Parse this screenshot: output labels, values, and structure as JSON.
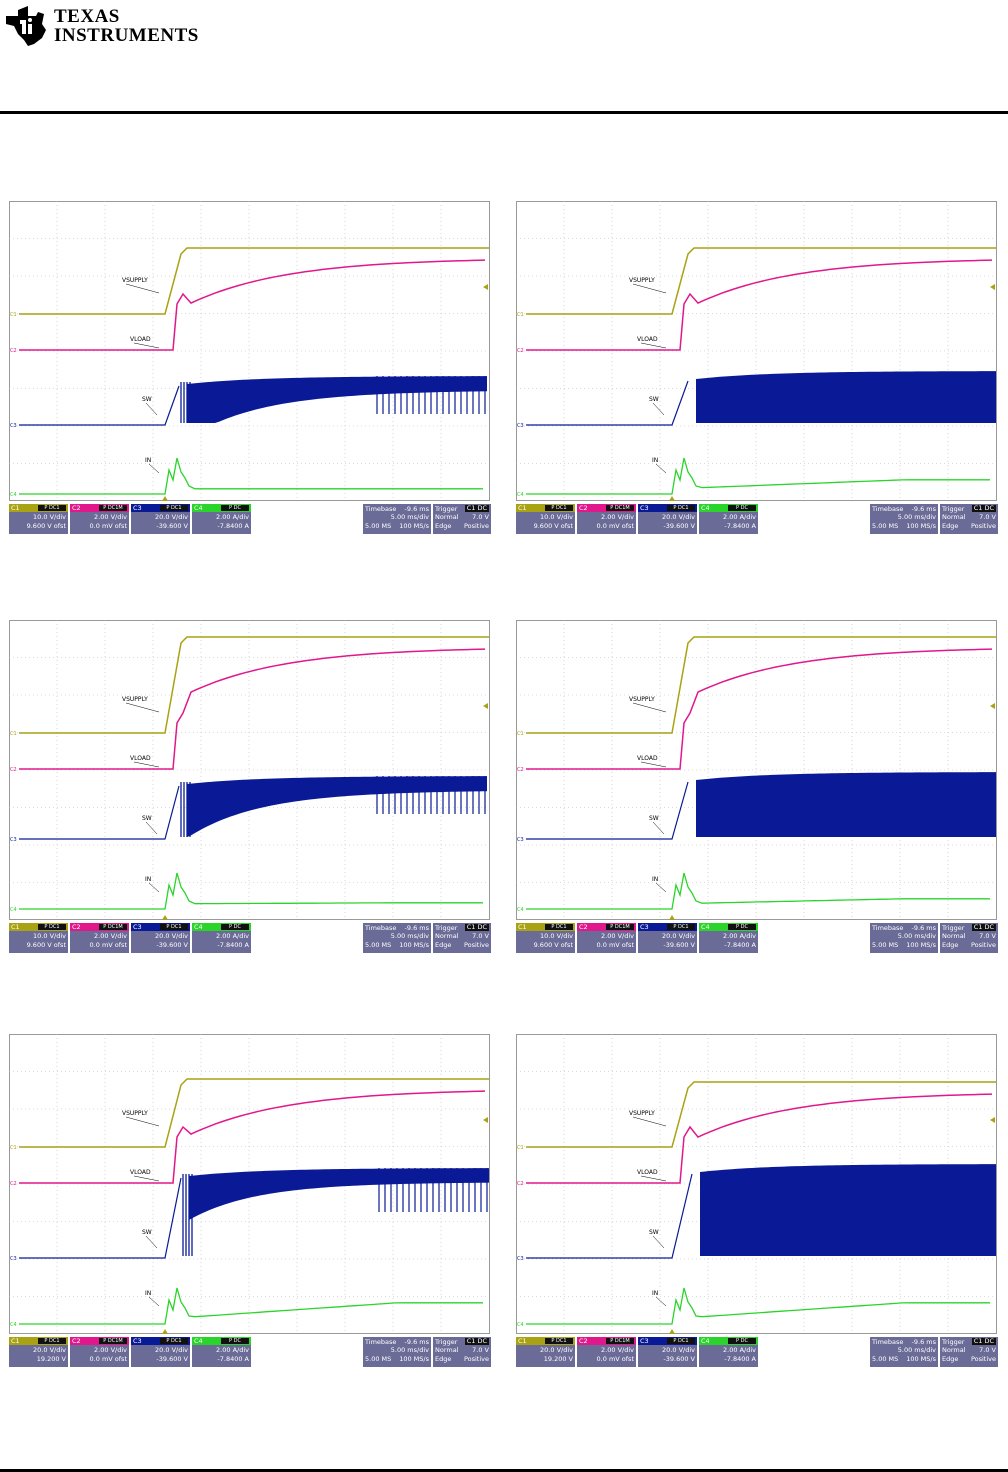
{
  "header": {
    "logo_line1": "TEXAS",
    "logo_line2": "INSTRUMENTS",
    "logo_icon": "ti-state-logo-icon"
  },
  "colors": {
    "c1": "#a9a213",
    "c2": "#e0188c",
    "c3": "#0a1a96",
    "c4": "#2bd42b",
    "grid": "#b9b9b9",
    "info_bg": "#6b6b97"
  },
  "chart_data": [
    {
      "type": "line",
      "labels": {
        "vsupply": "VSUPPLY",
        "vload": "VLOAD",
        "sw": "SW",
        "in": "IN"
      },
      "markers": [
        "C1",
        "C2",
        "C3",
        "C4"
      ],
      "channels": [
        {
          "name": "C1",
          "tag": "P DC1",
          "scale": "10.0 V/div",
          "offset": "9.600 V ofst"
        },
        {
          "name": "C2",
          "tag": "P DC1M",
          "scale": "2.00 V/div",
          "offset": "0.0 mV ofst"
        },
        {
          "name": "C3",
          "tag": "P DC1",
          "scale": "20.0 V/div",
          "offset": "-39.600 V"
        },
        {
          "name": "C4",
          "tag": "P DC",
          "scale": "2.00 A/div",
          "offset": "-7.8400 A"
        }
      ],
      "timebase": {
        "label": "Timebase",
        "value": "-9.6 ms",
        "scale": "5.00 ms/div",
        "samples": "5.00 MS",
        "rate": "100 MS/s"
      },
      "trigger": {
        "label": "Trigger",
        "src": "C1 DC",
        "mode": "Normal",
        "level": "7.0 V",
        "type": "Edge",
        "slope": "Positive"
      }
    },
    {
      "type": "line",
      "labels": {
        "vsupply": "VSUPPLY",
        "vload": "VLOAD",
        "sw": "SW",
        "in": "IN"
      },
      "markers": [
        "C1",
        "C2",
        "C3",
        "C4"
      ],
      "channels": [
        {
          "name": "C1",
          "tag": "P DC1",
          "scale": "10.0 V/div",
          "offset": "9.600 V ofst"
        },
        {
          "name": "C2",
          "tag": "P DC1M",
          "scale": "2.00 V/div",
          "offset": "0.0 mV ofst"
        },
        {
          "name": "C3",
          "tag": "P DC1",
          "scale": "20.0 V/div",
          "offset": "-39.600 V"
        },
        {
          "name": "C4",
          "tag": "P DC",
          "scale": "2.00 A/div",
          "offset": "-7.8400 A"
        }
      ],
      "timebase": {
        "label": "Timebase",
        "value": "-9.6 ms",
        "scale": "5.00 ms/div",
        "samples": "5.00 MS",
        "rate": "100 MS/s"
      },
      "trigger": {
        "label": "Trigger",
        "src": "C1 DC",
        "mode": "Normal",
        "level": "7.0 V",
        "type": "Edge",
        "slope": "Positive"
      }
    },
    {
      "type": "line",
      "labels": {
        "vsupply": "VSUPPLY",
        "vload": "VLOAD",
        "sw": "SW",
        "in": "IN"
      },
      "markers": [
        "C1",
        "C2",
        "C3",
        "C4"
      ],
      "channels": [
        {
          "name": "C1",
          "tag": "P DC1",
          "scale": "10.0 V/div",
          "offset": "9.600 V ofst"
        },
        {
          "name": "C2",
          "tag": "P DC1M",
          "scale": "2.00 V/div",
          "offset": "0.0 mV ofst"
        },
        {
          "name": "C3",
          "tag": "P DC1",
          "scale": "20.0 V/div",
          "offset": "-39.600 V"
        },
        {
          "name": "C4",
          "tag": "P DC",
          "scale": "2.00 A/div",
          "offset": "-7.8400 A"
        }
      ],
      "timebase": {
        "label": "Timebase",
        "value": "-9.6 ms",
        "scale": "5.00 ms/div",
        "samples": "5.00 MS",
        "rate": "100 MS/s"
      },
      "trigger": {
        "label": "Trigger",
        "src": "C1 DC",
        "mode": "Normal",
        "level": "7.0 V",
        "type": "Edge",
        "slope": "Positive"
      }
    },
    {
      "type": "line",
      "labels": {
        "vsupply": "VSUPPLY",
        "vload": "VLOAD",
        "sw": "SW",
        "in": "IN"
      },
      "markers": [
        "C1",
        "C2",
        "C3",
        "C4"
      ],
      "channels": [
        {
          "name": "C1",
          "tag": "P DC1",
          "scale": "10.0 V/div",
          "offset": "9.600 V ofst"
        },
        {
          "name": "C2",
          "tag": "P DC1M",
          "scale": "2.00 V/div",
          "offset": "0.0 mV ofst"
        },
        {
          "name": "C3",
          "tag": "P DC1",
          "scale": "20.0 V/div",
          "offset": "-39.600 V"
        },
        {
          "name": "C4",
          "tag": "P DC",
          "scale": "2.00 A/div",
          "offset": "-7.8400 A"
        }
      ],
      "timebase": {
        "label": "Timebase",
        "value": "-9.6 ms",
        "scale": "5.00 ms/div",
        "samples": "5.00 MS",
        "rate": "100 MS/s"
      },
      "trigger": {
        "label": "Trigger",
        "src": "C1 DC",
        "mode": "Normal",
        "level": "7.0 V",
        "type": "Edge",
        "slope": "Positive"
      }
    },
    {
      "type": "line",
      "labels": {
        "vsupply": "VSUPPLY",
        "vload": "VLOAD",
        "sw": "SW",
        "in": "IN"
      },
      "markers": [
        "C1",
        "C2",
        "C3",
        "C4"
      ],
      "channels": [
        {
          "name": "C1",
          "tag": "P DC1",
          "scale": "20.0 V/div",
          "offset": "19.200 V"
        },
        {
          "name": "C2",
          "tag": "P DC1M",
          "scale": "2.00 V/div",
          "offset": "0.0 mV ofst"
        },
        {
          "name": "C3",
          "tag": "P DC1",
          "scale": "20.0 V/div",
          "offset": "-39.600 V"
        },
        {
          "name": "C4",
          "tag": "P DC",
          "scale": "2.00 A/div",
          "offset": "-7.8400 A"
        }
      ],
      "timebase": {
        "label": "Timebase",
        "value": "-9.6 ms",
        "scale": "5.00 ms/div",
        "samples": "5.00 MS",
        "rate": "100 MS/s"
      },
      "trigger": {
        "label": "Trigger",
        "src": "C1 DC",
        "mode": "Normal",
        "level": "7.0 V",
        "type": "Edge",
        "slope": "Positive"
      }
    },
    {
      "type": "line",
      "labels": {
        "vsupply": "VSUPPLY",
        "vload": "VLOAD",
        "sw": "SW",
        "in": "IN"
      },
      "markers": [
        "C1",
        "C2",
        "C3",
        "C4"
      ],
      "channels": [
        {
          "name": "C1",
          "tag": "P DC1",
          "scale": "20.0 V/div",
          "offset": "19.200 V"
        },
        {
          "name": "C2",
          "tag": "P DC1M",
          "scale": "2.00 V/div",
          "offset": "0.0 mV ofst"
        },
        {
          "name": "C3",
          "tag": "P DC1",
          "scale": "20.0 V/div",
          "offset": "-39.600 V"
        },
        {
          "name": "C4",
          "tag": "P DC",
          "scale": "2.00 A/div",
          "offset": "-7.8400 A"
        }
      ],
      "timebase": {
        "label": "Timebase",
        "value": "-9.6 ms",
        "scale": "5.00 ms/div",
        "samples": "5.00 MS",
        "rate": "100 MS/s"
      },
      "trigger": {
        "label": "Trigger",
        "src": "C1 DC",
        "mode": "Normal",
        "level": "7.0 V",
        "type": "Edge",
        "slope": "Positive"
      }
    }
  ]
}
